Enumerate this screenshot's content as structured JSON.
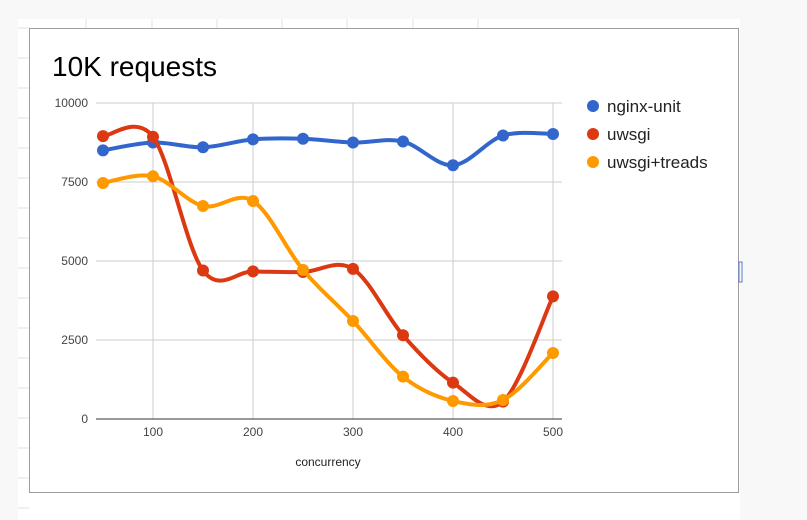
{
  "chart_data": {
    "type": "line",
    "title": "10K requests",
    "xlabel": "concurrency",
    "ylabel": "",
    "x": [
      50,
      100,
      150,
      200,
      250,
      300,
      350,
      400,
      450,
      500
    ],
    "xticks": [
      100,
      200,
      300,
      400,
      500
    ],
    "yticks": [
      0,
      2500,
      5000,
      7500,
      10000
    ],
    "xlim": [
      50,
      505
    ],
    "ylim": [
      0,
      10000
    ],
    "grid": true,
    "legend_position": "right",
    "series": [
      {
        "name": "nginx-unit",
        "color": "#3366cc",
        "values": [
          8500,
          8750,
          8600,
          8850,
          8870,
          8750,
          8780,
          8030,
          8970,
          9020
        ]
      },
      {
        "name": "uwsgi",
        "color": "#dc3912",
        "values": [
          8950,
          8930,
          4700,
          4670,
          4650,
          4750,
          2650,
          1150,
          550,
          3880
        ]
      },
      {
        "name": "uwsgi+treads",
        "color": "#ff9900",
        "values": [
          7470,
          7680,
          6740,
          6900,
          4720,
          3100,
          1340,
          570,
          600,
          2090
        ]
      }
    ]
  }
}
